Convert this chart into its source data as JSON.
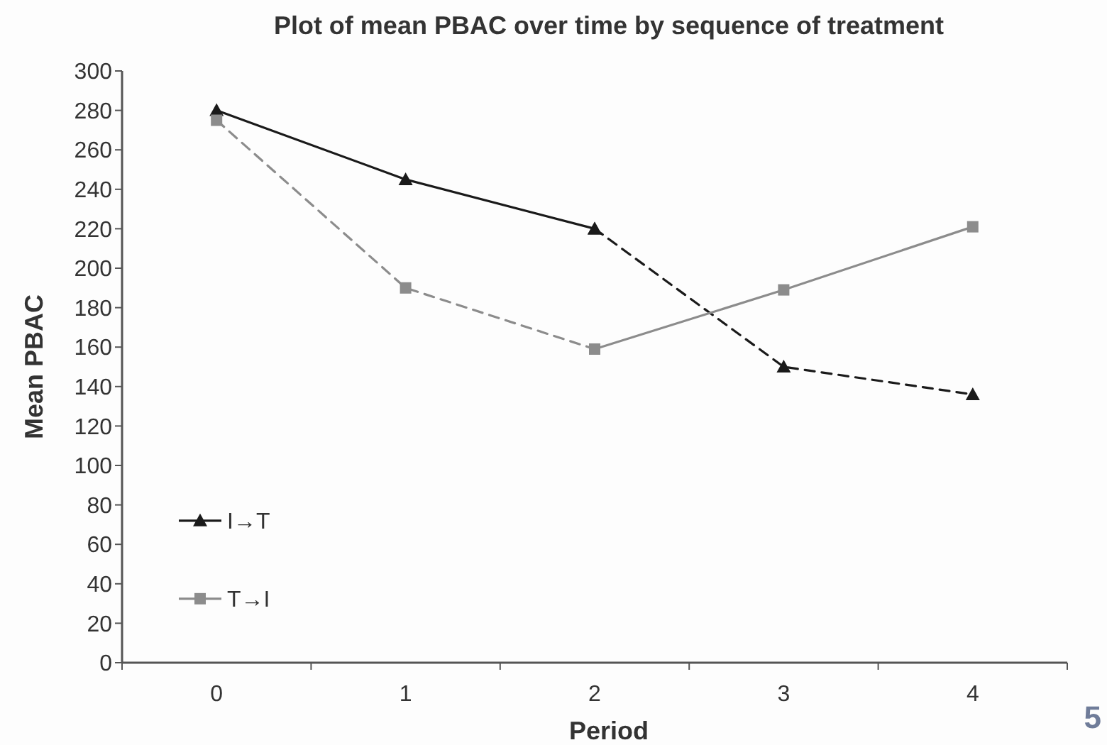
{
  "chart_data": {
    "type": "line",
    "title": "Plot of mean PBAC over time by sequence of treatment",
    "xlabel": "Period",
    "ylabel": "Mean PBAC",
    "categories": [
      "0",
      "1",
      "2",
      "3",
      "4"
    ],
    "series": [
      {
        "name": "I→T",
        "color": "#1a1a1a",
        "marker": "triangle",
        "line_style": "solid",
        "values": [
          280,
          245,
          220,
          null,
          null
        ]
      },
      {
        "color": "#1a1a1a",
        "marker": "triangle",
        "line_style": "dashed",
        "values": [
          null,
          null,
          220,
          150,
          136
        ]
      },
      {
        "color": "#8c8c8c",
        "marker": "square",
        "line_style": "dashed",
        "values": [
          275,
          190,
          159,
          null,
          null
        ]
      },
      {
        "name": "T→I",
        "color": "#8c8c8c",
        "marker": "square",
        "line_style": "solid",
        "values": [
          null,
          null,
          159,
          189,
          221
        ]
      }
    ],
    "ylim": [
      0,
      300
    ],
    "yticks": [
      0,
      20,
      40,
      60,
      80,
      100,
      120,
      140,
      160,
      180,
      200,
      220,
      240,
      260,
      280,
      300
    ],
    "grid": false,
    "legend": "left",
    "annotations": [
      "5"
    ]
  }
}
